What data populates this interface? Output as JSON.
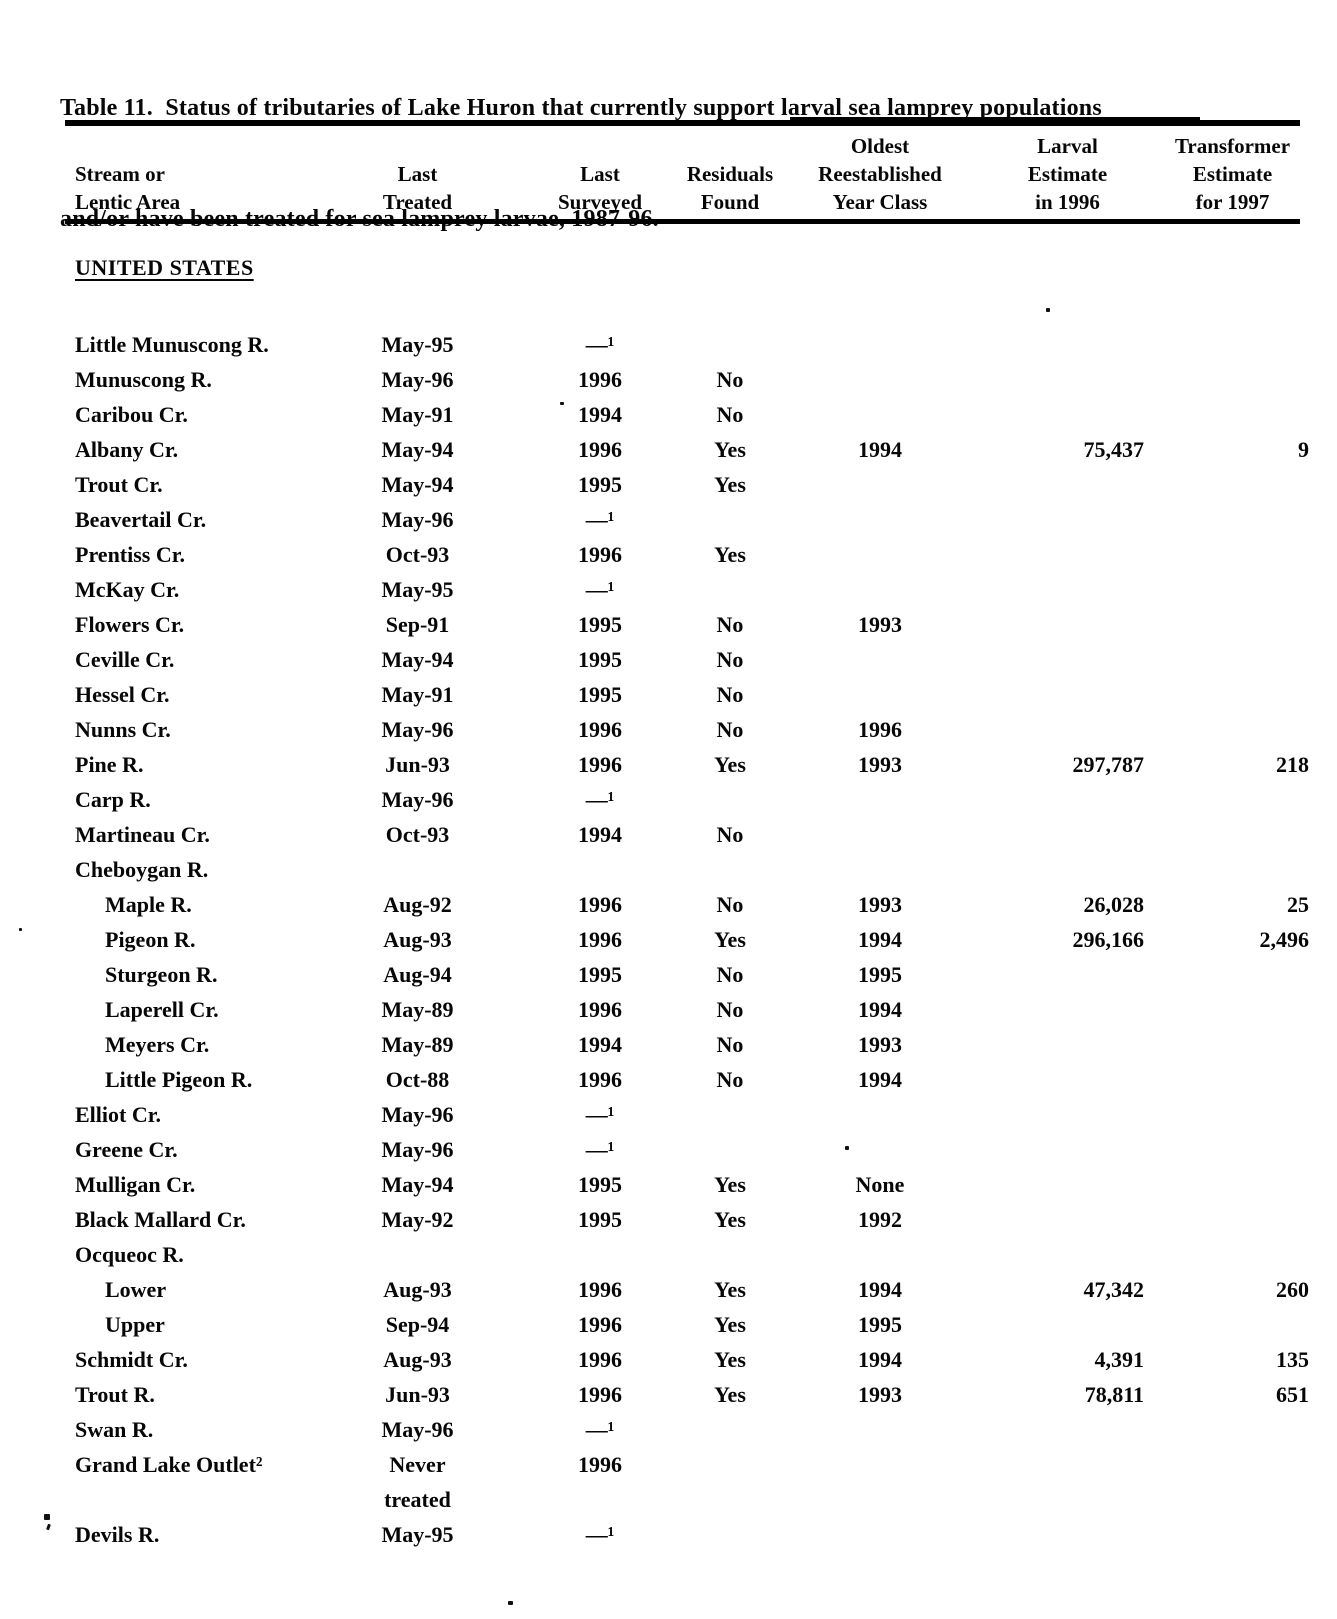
{
  "page": {
    "title_lines": [
      "Table 11.  Status of tributaries of Lake Huron that currently support larval sea lamprey populations",
      "and/or have been treated for sea lamprey larvae, 1987-96."
    ]
  },
  "table": {
    "section_heading": "UNITED STATES",
    "columns": [
      {
        "id": "stream",
        "label_lines": [
          "Stream or",
          "Lentic Area"
        ]
      },
      {
        "id": "last-treated",
        "label_lines": [
          "Last",
          "Treated"
        ]
      },
      {
        "id": "last-surveyed",
        "label_lines": [
          "Last",
          "Surveyed"
        ]
      },
      {
        "id": "residuals-found",
        "label_lines": [
          "Residuals",
          "Found"
        ]
      },
      {
        "id": "oldest-year-class",
        "label_lines": [
          "Oldest",
          "Reestablished",
          "Year Class"
        ]
      },
      {
        "id": "larval-estimate",
        "label_lines": [
          "Larval",
          "Estimate",
          "in 1996"
        ]
      },
      {
        "id": "transformer-estimate",
        "label_lines": [
          "Transformer",
          "Estimate",
          "for 1997"
        ]
      }
    ],
    "rows": [
      {
        "name": "Little Munuscong R.",
        "indent": false,
        "treated": "May-95",
        "surveyed": "—¹",
        "residuals": "",
        "year_class": "",
        "larval": "",
        "transformer": ""
      },
      {
        "name": "Munuscong R.",
        "indent": false,
        "treated": "May-96",
        "surveyed": "1996",
        "residuals": "No",
        "year_class": "",
        "larval": "",
        "transformer": ""
      },
      {
        "name": "Caribou Cr.",
        "indent": false,
        "treated": "May-91",
        "surveyed": "1994",
        "residuals": "No",
        "year_class": "",
        "larval": "",
        "transformer": ""
      },
      {
        "name": "Albany Cr.",
        "indent": false,
        "treated": "May-94",
        "surveyed": "1996",
        "residuals": "Yes",
        "year_class": "1994",
        "larval": "75,437",
        "transformer": "9"
      },
      {
        "name": "Trout Cr.",
        "indent": false,
        "treated": "May-94",
        "surveyed": "1995",
        "residuals": "Yes",
        "year_class": "",
        "larval": "",
        "transformer": ""
      },
      {
        "name": "Beavertail Cr.",
        "indent": false,
        "treated": "May-96",
        "surveyed": "—¹",
        "residuals": "",
        "year_class": "",
        "larval": "",
        "transformer": ""
      },
      {
        "name": "Prentiss Cr.",
        "indent": false,
        "treated": "Oct-93",
        "surveyed": "1996",
        "residuals": "Yes",
        "year_class": "",
        "larval": "",
        "transformer": ""
      },
      {
        "name": "McKay Cr.",
        "indent": false,
        "treated": "May-95",
        "surveyed": "—¹",
        "residuals": "",
        "year_class": "",
        "larval": "",
        "transformer": ""
      },
      {
        "name": "Flowers Cr.",
        "indent": false,
        "treated": "Sep-91",
        "surveyed": "1995",
        "residuals": "No",
        "year_class": "1993",
        "larval": "",
        "transformer": ""
      },
      {
        "name": "Ceville Cr.",
        "indent": false,
        "treated": "May-94",
        "surveyed": "1995",
        "residuals": "No",
        "year_class": "",
        "larval": "",
        "transformer": ""
      },
      {
        "name": "Hessel Cr.",
        "indent": false,
        "treated": "May-91",
        "surveyed": "1995",
        "residuals": "No",
        "year_class": "",
        "larval": "",
        "transformer": ""
      },
      {
        "name": "Nunns Cr.",
        "indent": false,
        "treated": "May-96",
        "surveyed": "1996",
        "residuals": "No",
        "year_class": "1996",
        "larval": "",
        "transformer": ""
      },
      {
        "name": "Pine R.",
        "indent": false,
        "treated": "Jun-93",
        "surveyed": "1996",
        "residuals": "Yes",
        "year_class": "1993",
        "larval": "297,787",
        "transformer": "218"
      },
      {
        "name": "Carp R.",
        "indent": false,
        "treated": "May-96",
        "surveyed": "—¹",
        "residuals": "",
        "year_class": "",
        "larval": "",
        "transformer": ""
      },
      {
        "name": "Martineau Cr.",
        "indent": false,
        "treated": "Oct-93",
        "surveyed": "1994",
        "residuals": "No",
        "year_class": "",
        "larval": "",
        "transformer": ""
      },
      {
        "name": "Cheboygan R.",
        "indent": false,
        "treated": "",
        "surveyed": "",
        "residuals": "",
        "year_class": "",
        "larval": "",
        "transformer": ""
      },
      {
        "name": "Maple R.",
        "indent": true,
        "treated": "Aug-92",
        "surveyed": "1996",
        "residuals": "No",
        "year_class": "1993",
        "larval": "26,028",
        "transformer": "25"
      },
      {
        "name": "Pigeon R.",
        "indent": true,
        "treated": "Aug-93",
        "surveyed": "1996",
        "residuals": "Yes",
        "year_class": "1994",
        "larval": "296,166",
        "transformer": "2,496"
      },
      {
        "name": "Sturgeon R.",
        "indent": true,
        "treated": "Aug-94",
        "surveyed": "1995",
        "residuals": "No",
        "year_class": "1995",
        "larval": "",
        "transformer": ""
      },
      {
        "name": "Laperell Cr.",
        "indent": true,
        "treated": "May-89",
        "surveyed": "1996",
        "residuals": "No",
        "year_class": "1994",
        "larval": "",
        "transformer": ""
      },
      {
        "name": "Meyers Cr.",
        "indent": true,
        "treated": "May-89",
        "surveyed": "1994",
        "residuals": "No",
        "year_class": "1993",
        "larval": "",
        "transformer": ""
      },
      {
        "name": "Little Pigeon R.",
        "indent": true,
        "treated": "Oct-88",
        "surveyed": "1996",
        "residuals": "No",
        "year_class": "1994",
        "larval": "",
        "transformer": ""
      },
      {
        "name": "Elliot Cr.",
        "indent": false,
        "treated": "May-96",
        "surveyed": "—¹",
        "residuals": "",
        "year_class": "",
        "larval": "",
        "transformer": ""
      },
      {
        "name": "Greene Cr.",
        "indent": false,
        "treated": "May-96",
        "surveyed": "—¹",
        "residuals": "",
        "year_class": "",
        "larval": "",
        "transformer": ""
      },
      {
        "name": "Mulligan Cr.",
        "indent": false,
        "treated": "May-94",
        "surveyed": "1995",
        "residuals": "Yes",
        "year_class": "None",
        "larval": "",
        "transformer": ""
      },
      {
        "name": "Black Mallard Cr.",
        "indent": false,
        "treated": "May-92",
        "surveyed": "1995",
        "residuals": "Yes",
        "year_class": "1992",
        "larval": "",
        "transformer": ""
      },
      {
        "name": "Ocqueoc R.",
        "indent": false,
        "treated": "",
        "surveyed": "",
        "residuals": "",
        "year_class": "",
        "larval": "",
        "transformer": ""
      },
      {
        "name": "Lower",
        "indent": true,
        "treated": "Aug-93",
        "surveyed": "1996",
        "residuals": "Yes",
        "year_class": "1994",
        "larval": "47,342",
        "transformer": "260"
      },
      {
        "name": "Upper",
        "indent": true,
        "treated": "Sep-94",
        "surveyed": "1996",
        "residuals": "Yes",
        "year_class": "1995",
        "larval": "",
        "transformer": ""
      },
      {
        "name": "Schmidt Cr.",
        "indent": false,
        "treated": "Aug-93",
        "surveyed": "1996",
        "residuals": "Yes",
        "year_class": "1994",
        "larval": "4,391",
        "transformer": "135"
      },
      {
        "name": "Trout R.",
        "indent": false,
        "treated": "Jun-93",
        "surveyed": "1996",
        "residuals": "Yes",
        "year_class": "1993",
        "larval": "78,811",
        "transformer": "651"
      },
      {
        "name": "Swan R.",
        "indent": false,
        "treated": "May-96",
        "surveyed": "—¹",
        "residuals": "",
        "year_class": "",
        "larval": "",
        "transformer": ""
      },
      {
        "name": "Grand Lake Outlet²",
        "indent": false,
        "treated": "Never\ntreated",
        "surveyed": "1996",
        "residuals": "",
        "year_class": "",
        "larval": "",
        "transformer": ""
      },
      {
        "name": "Devils R.",
        "indent": false,
        "treated": "May-95",
        "surveyed": "—¹",
        "residuals": "",
        "year_class": "",
        "larval": "",
        "transformer": ""
      }
    ]
  }
}
